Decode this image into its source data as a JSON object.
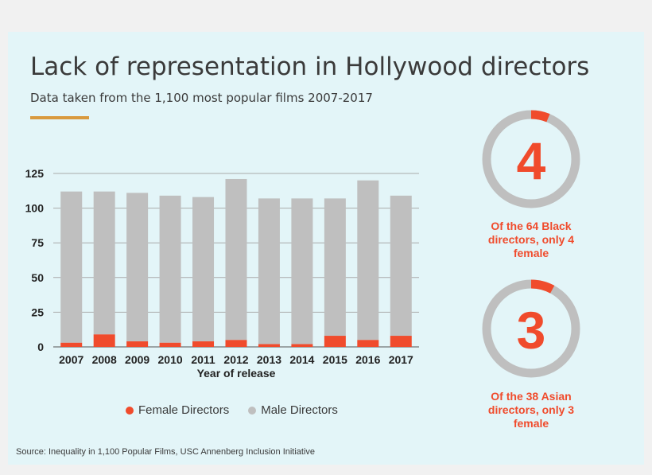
{
  "title": "Lack of representation in Hollywood directors",
  "subtitle": "Data taken from the 1,100 most popular films 2007-2017",
  "source": "Source: Inequality in 1,100 Popular Films, USC Annenberg Inclusion Initiative",
  "colors": {
    "female": "#f04b2c",
    "male": "#bfbfbf",
    "accent": "#d99a3f",
    "background": "#e3f5f8"
  },
  "chart_data": {
    "type": "bar",
    "stacked": true,
    "categories": [
      "2007",
      "2008",
      "2009",
      "2010",
      "2011",
      "2012",
      "2013",
      "2014",
      "2015",
      "2016",
      "2017"
    ],
    "series": [
      {
        "name": "Female Directors",
        "values": [
          3,
          9,
          4,
          3,
          4,
          5,
          2,
          2,
          8,
          5,
          8
        ]
      },
      {
        "name": "Male Directors",
        "values": [
          109,
          103,
          107,
          106,
          104,
          116,
          105,
          105,
          99,
          115,
          101
        ]
      }
    ],
    "yticks": [
      0,
      25,
      50,
      75,
      100,
      125
    ],
    "ylim": [
      0,
      125
    ],
    "xlabel": "Year of release",
    "ylabel": "",
    "grid": true,
    "legend": "bottom"
  },
  "stats": [
    {
      "number": "4",
      "caption": "Of the 64 Black directors, only 4 female",
      "fraction": 0.0625
    },
    {
      "number": "3",
      "caption": "Of the 38 Asian directors, only 3 female",
      "fraction": 0.079
    }
  ]
}
